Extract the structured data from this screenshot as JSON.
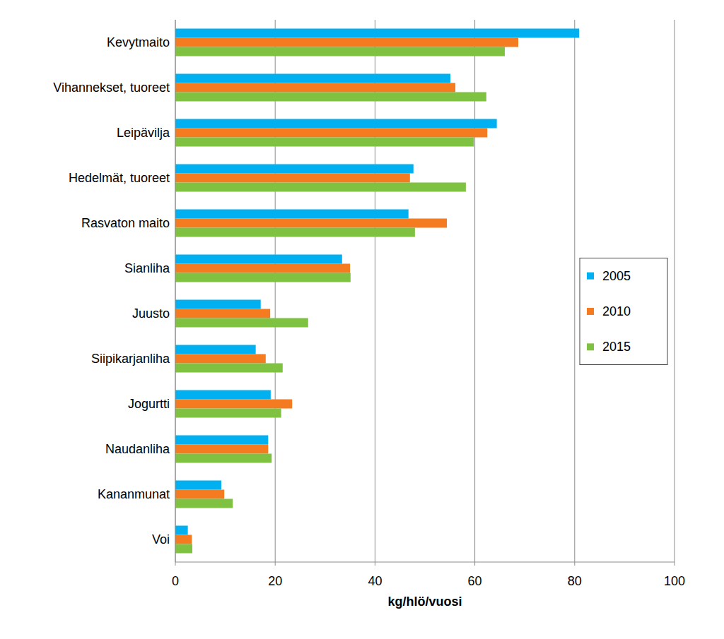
{
  "chart_data": {
    "type": "bar",
    "orientation": "horizontal",
    "categories": [
      "Kevytmaito",
      "Vihannekset, tuoreet",
      "Leipävilja",
      "Hedelmät, tuoreet",
      "Rasvaton maito",
      "Sianliha",
      "Juusto",
      "Siipikarjanliha",
      "Jogurtti",
      "Naudanliha",
      "Kananmunat",
      "Voi"
    ],
    "series": [
      {
        "name": "2005",
        "color": "#00b0f0",
        "values": [
          80.9,
          55.1,
          64.4,
          47.7,
          46.7,
          33.4,
          17.1,
          16.1,
          19.1,
          18.6,
          9.2,
          2.5
        ]
      },
      {
        "name": "2010",
        "color": "#f47b20",
        "values": [
          68.7,
          56.1,
          62.5,
          47.0,
          54.4,
          35.0,
          19.0,
          18.1,
          23.4,
          18.6,
          9.8,
          3.3
        ]
      },
      {
        "name": "2015",
        "color": "#7fc241",
        "values": [
          66.0,
          62.3,
          59.8,
          58.2,
          48.0,
          35.1,
          26.6,
          21.5,
          21.2,
          19.3,
          11.5,
          3.4
        ]
      }
    ],
    "x_label": "kg/hlö/vuosi",
    "xlim": [
      0,
      100
    ],
    "xticks": [
      0,
      20,
      40,
      60,
      80,
      100
    ],
    "grid": true,
    "legend": "right"
  }
}
